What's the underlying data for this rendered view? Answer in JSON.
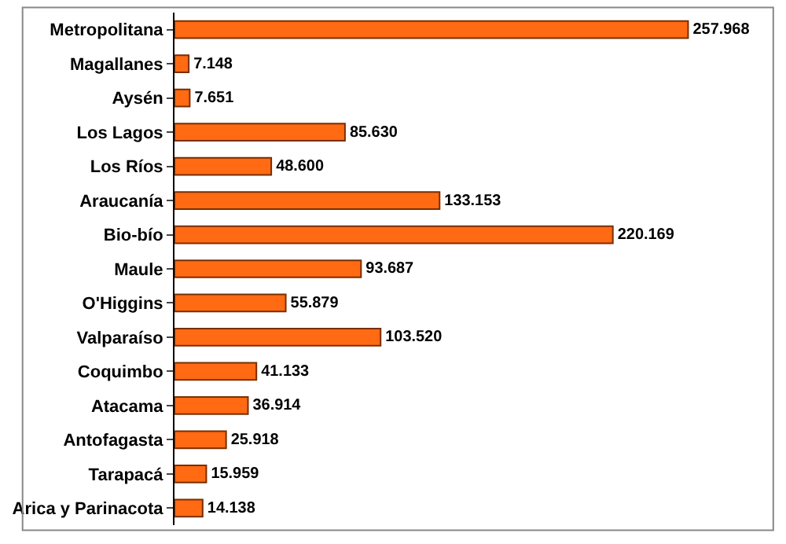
{
  "chart_data": {
    "type": "bar",
    "orientation": "horizontal",
    "categories": [
      "Metropolitana",
      "Magallanes",
      "Aysén",
      "Los Lagos",
      "Los Ríos",
      "Araucanía",
      "Bio-bío",
      "Maule",
      "O'Higgins",
      "Valparaíso",
      "Coquimbo",
      "Atacama",
      "Antofagasta",
      "Tarapacá",
      "Arica y Parinacota"
    ],
    "values": [
      257968,
      7148,
      7651,
      85630,
      48600,
      133153,
      220169,
      93687,
      55879,
      103520,
      41133,
      36914,
      25918,
      15959,
      14138
    ],
    "value_labels": [
      "257.968",
      "7.148",
      "7.651",
      "85.630",
      "48.600",
      "133.153",
      "220.169",
      "93.687",
      "55.879",
      "103.520",
      "41.133",
      "36.914",
      "25.918",
      "15.959",
      "14.138"
    ],
    "color": "#ff6a13",
    "grid": false
  }
}
